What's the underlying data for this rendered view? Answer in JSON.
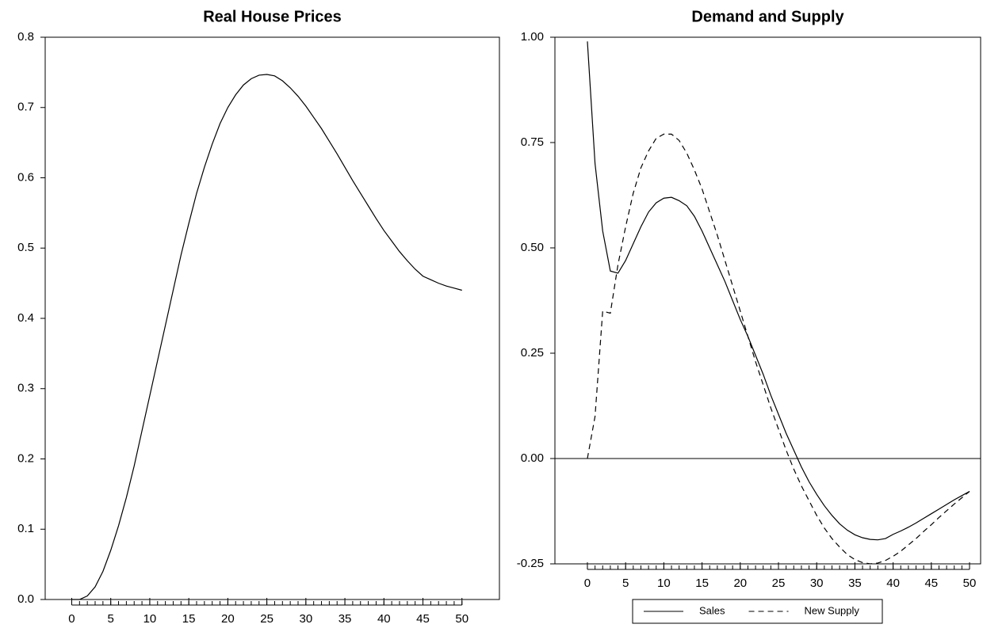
{
  "chart_data": [
    {
      "type": "line",
      "title": "Real House Prices",
      "x": [
        0,
        1,
        2,
        3,
        4,
        5,
        6,
        7,
        8,
        9,
        10,
        11,
        12,
        13,
        14,
        15,
        16,
        17,
        18,
        19,
        20,
        21,
        22,
        23,
        24,
        25,
        26,
        27,
        28,
        29,
        30,
        31,
        32,
        33,
        34,
        35,
        36,
        37,
        38,
        39,
        40,
        41,
        42,
        43,
        44,
        45,
        46,
        47,
        48,
        49,
        50
      ],
      "series": [
        {
          "color": "#000000",
          "linestyle": "solid",
          "values": [
            0.0,
            0.0,
            0.005,
            0.018,
            0.04,
            0.07,
            0.105,
            0.145,
            0.19,
            0.24,
            0.29,
            0.34,
            0.39,
            0.44,
            0.49,
            0.535,
            0.578,
            0.615,
            0.648,
            0.677,
            0.7,
            0.718,
            0.732,
            0.741,
            0.746,
            0.747,
            0.745,
            0.738,
            0.728,
            0.716,
            0.702,
            0.686,
            0.67,
            0.652,
            0.634,
            0.615,
            0.596,
            0.578,
            0.56,
            0.542,
            0.525,
            0.51,
            0.495,
            0.482,
            0.47,
            0.46,
            0.455,
            0.45,
            0.446,
            0.443,
            0.44
          ]
        }
      ],
      "xlim": [
        -3.4,
        54.8
      ],
      "xticks": [
        0,
        5,
        10,
        15,
        20,
        25,
        30,
        35,
        40,
        45,
        50
      ],
      "ylim": [
        0,
        0.8
      ],
      "yticks": [
        {
          "value": 0,
          "label": "0.0"
        },
        0.1,
        0.2,
        0.3,
        0.4,
        0.5,
        0.6,
        0.7,
        0.8
      ],
      "grid": false
    },
    {
      "type": "line",
      "title": "Demand and Supply",
      "x": [
        0,
        1,
        2,
        3,
        4,
        5,
        6,
        7,
        8,
        9,
        10,
        11,
        12,
        13,
        14,
        15,
        16,
        17,
        18,
        19,
        20,
        21,
        22,
        23,
        24,
        25,
        26,
        27,
        28,
        29,
        30,
        31,
        32,
        33,
        34,
        35,
        36,
        37,
        38,
        39,
        40,
        41,
        42,
        43,
        44,
        45,
        46,
        47,
        48,
        49,
        50
      ],
      "series": [
        {
          "name": "Sales",
          "color": "#000000",
          "linestyle": "solid",
          "values": [
            0.99,
            0.7,
            0.54,
            0.445,
            0.44,
            0.47,
            0.51,
            0.55,
            0.585,
            0.607,
            0.618,
            0.62,
            0.612,
            0.6,
            0.575,
            0.54,
            0.5,
            0.46,
            0.42,
            0.375,
            0.33,
            0.29,
            0.245,
            0.2,
            0.15,
            0.105,
            0.06,
            0.02,
            -0.02,
            -0.055,
            -0.085,
            -0.112,
            -0.135,
            -0.155,
            -0.17,
            -0.181,
            -0.188,
            -0.192,
            -0.193,
            -0.19,
            -0.18,
            -0.172,
            -0.163,
            -0.153,
            -0.142,
            -0.131,
            -0.12,
            -0.109,
            -0.098,
            -0.088,
            -0.078
          ]
        },
        {
          "name": "New Supply",
          "color": "#000000",
          "linestyle": "dashed",
          "values": [
            0.0,
            0.1,
            0.35,
            0.345,
            0.46,
            0.55,
            0.63,
            0.69,
            0.73,
            0.76,
            0.77,
            0.77,
            0.755,
            0.725,
            0.685,
            0.64,
            0.585,
            0.53,
            0.47,
            0.41,
            0.35,
            0.29,
            0.23,
            0.175,
            0.12,
            0.07,
            0.02,
            -0.025,
            -0.065,
            -0.1,
            -0.135,
            -0.165,
            -0.19,
            -0.21,
            -0.228,
            -0.24,
            -0.247,
            -0.25,
            -0.248,
            -0.242,
            -0.232,
            -0.22,
            -0.205,
            -0.19,
            -0.173,
            -0.157,
            -0.14,
            -0.124,
            -0.108,
            -0.093,
            -0.078
          ]
        }
      ],
      "xlim": [
        -4.25,
        51.45
      ],
      "xticks": [
        0,
        5,
        10,
        15,
        20,
        25,
        30,
        35,
        40,
        45,
        50
      ],
      "ylim": [
        -0.25,
        1
      ],
      "yticks": [
        {
          "value": 1,
          "label": "1.00"
        },
        0.75,
        {
          "value": 0.5,
          "label": "0.50"
        },
        0.25,
        {
          "value": 0,
          "label": "0.00"
        },
        -0.25
      ],
      "reference_lines": [
        0
      ],
      "legend": "bottom",
      "grid": false
    }
  ]
}
